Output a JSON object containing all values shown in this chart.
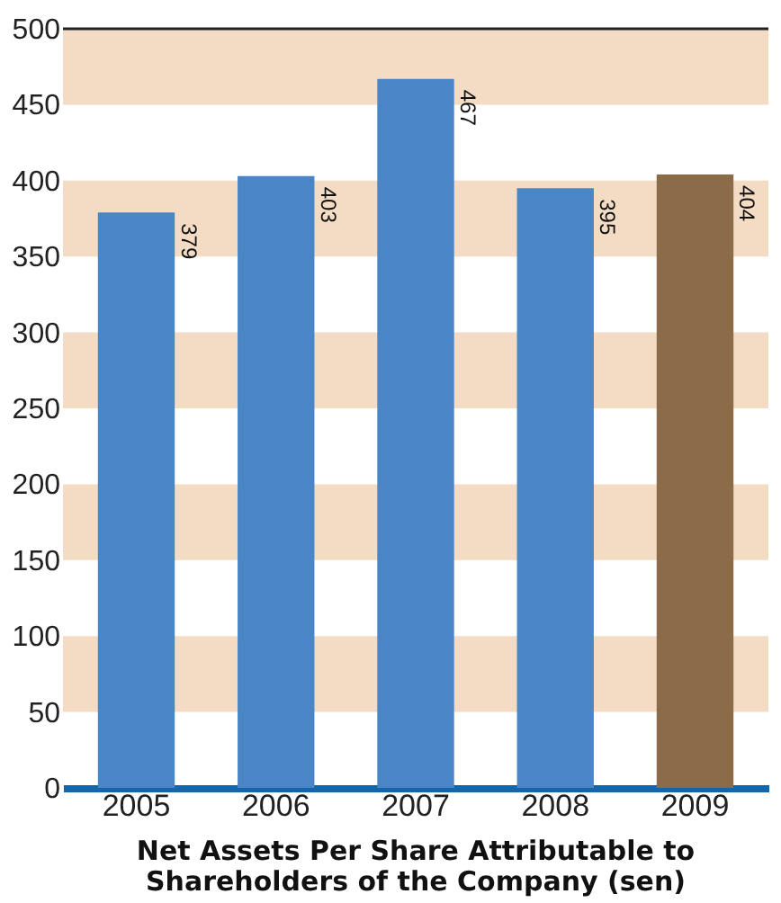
{
  "chart_data": {
    "type": "bar",
    "title": "Net Assets Per Share Attributable to Shareholders of the Company (sen)",
    "categories": [
      "2005",
      "2006",
      "2007",
      "2008",
      "2009"
    ],
    "values": [
      379,
      403,
      467,
      395,
      404
    ],
    "colors": [
      "#4a86c6",
      "#4a86c6",
      "#4a86c6",
      "#4a86c6",
      "#8c6c48"
    ],
    "ylim": [
      0,
      500
    ],
    "yticks": [
      0,
      50,
      100,
      150,
      200,
      250,
      300,
      350,
      400,
      450,
      500
    ],
    "bands": [
      {
        "axis": "y",
        "from": 450,
        "to": 500,
        "color": "#f3dcc3"
      },
      {
        "axis": "y",
        "from": 350,
        "to": 400,
        "color": "#f3dcc3"
      },
      {
        "axis": "y",
        "from": 250,
        "to": 300,
        "color": "#f3dcc3"
      },
      {
        "axis": "y",
        "from": 150,
        "to": 200,
        "color": "#f3dcc3"
      },
      {
        "axis": "y",
        "from": 50,
        "to": 100,
        "color": "#f3dcc3"
      }
    ],
    "data_labels": true
  }
}
